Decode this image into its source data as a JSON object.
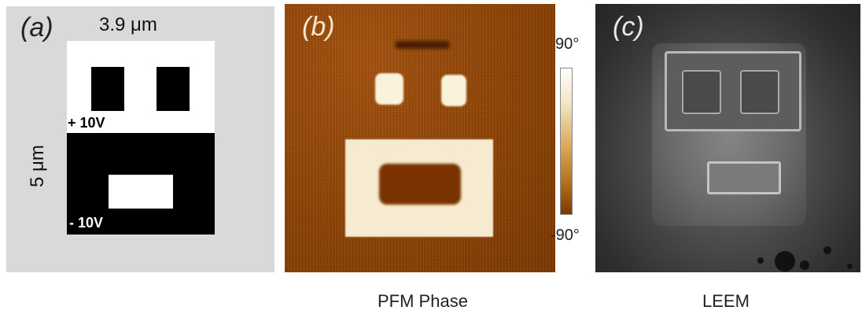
{
  "panel_a": {
    "label": "(a)",
    "width_label": "3.9 μm",
    "height_label": "5 μm",
    "top_voltage": "+ 10V",
    "bottom_voltage": "- 10V"
  },
  "panel_b": {
    "label": "(b)",
    "colorbar_max": "90°",
    "colorbar_min": "-90°",
    "caption": "PFM Phase"
  },
  "panel_c": {
    "label": "(c)",
    "caption": "LEEM"
  }
}
